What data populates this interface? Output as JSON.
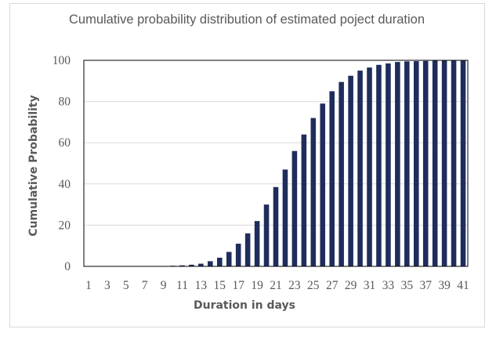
{
  "chart_data": {
    "type": "bar",
    "title": "Cumulative probability distribution of estimated poject duration",
    "xlabel": "Duration in days",
    "ylabel": "Cumulative Probability",
    "ylim": [
      0,
      100
    ],
    "yticks": [
      "0",
      "20",
      "40",
      "60",
      "80",
      "100"
    ],
    "categories": [
      "1",
      "2",
      "3",
      "4",
      "5",
      "6",
      "7",
      "8",
      "9",
      "10",
      "11",
      "12",
      "13",
      "14",
      "15",
      "16",
      "17",
      "18",
      "19",
      "20",
      "21",
      "22",
      "23",
      "24",
      "25",
      "26",
      "27",
      "28",
      "29",
      "30",
      "31",
      "32",
      "33",
      "34",
      "35",
      "36",
      "37",
      "38",
      "39",
      "40",
      "41"
    ],
    "xtick_labels": [
      "1",
      "3",
      "5",
      "7",
      "9",
      "11",
      "13",
      "15",
      "17",
      "19",
      "21",
      "23",
      "25",
      "27",
      "29",
      "31",
      "33",
      "35",
      "37",
      "39",
      "41"
    ],
    "values": [
      0,
      0,
      0,
      0,
      0,
      0,
      0,
      0.1,
      0.2,
      0.3,
      0.5,
      0.8,
      1.3,
      2.5,
      4.2,
      7,
      11,
      16,
      22,
      30,
      38.5,
      47,
      56,
      64,
      72,
      79,
      85,
      89.5,
      92.5,
      95,
      96.5,
      97.8,
      98.5,
      99.2,
      99.5,
      99.6,
      99.7,
      99.8,
      99.8,
      99.8,
      99.8
    ],
    "bar_color": "#1f2d5c",
    "grid": true,
    "legend": "none"
  }
}
